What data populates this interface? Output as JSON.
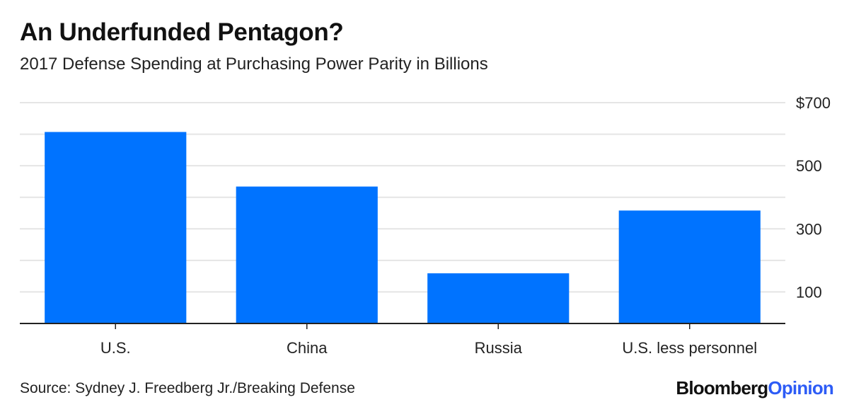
{
  "header": {
    "title": "An Underfunded Pentagon?",
    "subtitle": "2017 Defense Spending at Purchasing Power Parity in Billions"
  },
  "footer": {
    "source": "Source: Sydney J. Freedberg Jr./Breaking Defense",
    "brand_main": "Bloomberg",
    "brand_accent": "Opinion"
  },
  "colors": {
    "bar": "#0073ff",
    "gridline": "#e5e5e5",
    "axis": "#222222",
    "brand_accent": "#2d5cf6"
  },
  "chart_data": {
    "type": "bar",
    "title": "An Underfunded Pentagon?",
    "subtitle": "2017 Defense Spending at Purchasing Power Parity in Billions",
    "categories": [
      "U.S.",
      "China",
      "Russia",
      "U.S. less personnel"
    ],
    "values": [
      607,
      434,
      159,
      358
    ],
    "xlabel": "",
    "ylabel": "",
    "ylim": [
      0,
      700
    ],
    "yticks": [
      100,
      300,
      500,
      700
    ],
    "ytick_labels": [
      "100",
      "300",
      "500",
      "$700"
    ],
    "minor_gridlines": [
      200,
      400,
      600
    ],
    "grid": true,
    "y_axis_side": "right"
  }
}
